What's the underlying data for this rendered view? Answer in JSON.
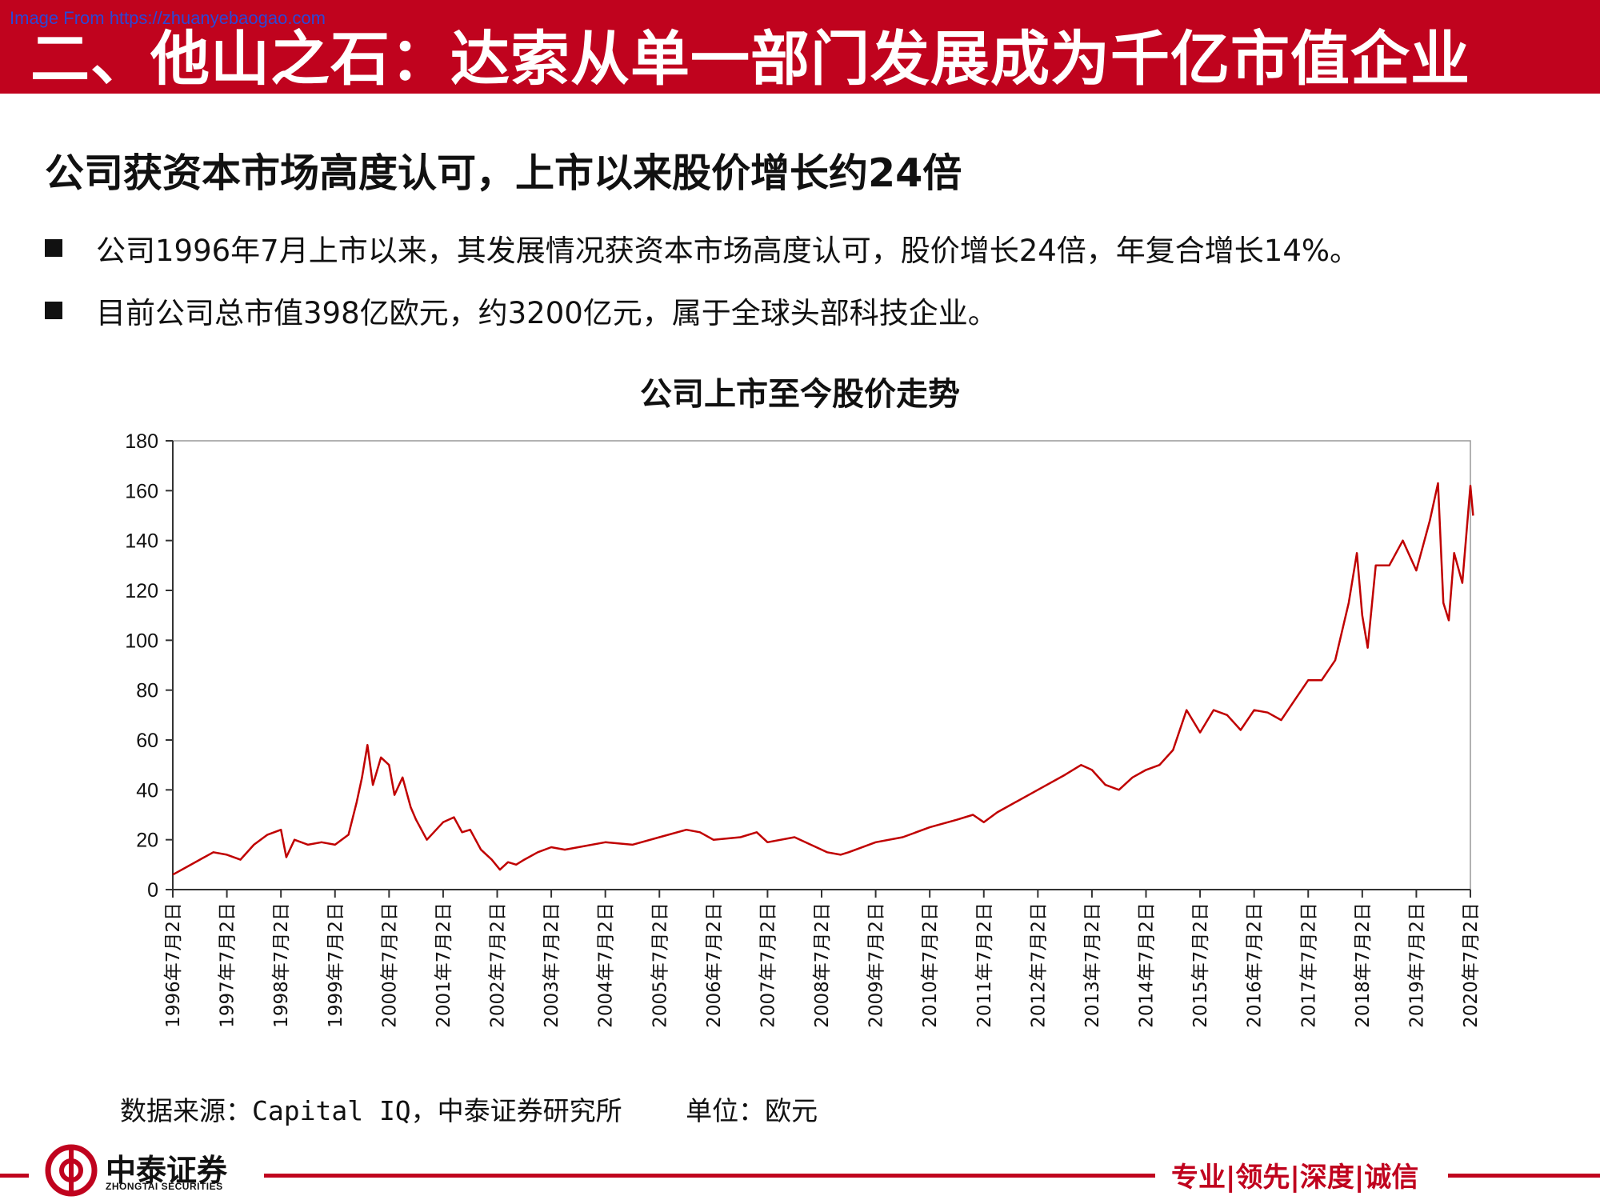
{
  "watermark": "Image From https://zhuanyebaogao.com",
  "header": {
    "title": "二、他山之石：达索从单一部门发展成为千亿市值企业"
  },
  "subtitle": "公司获资本市场高度认可，上市以来股价增长约24倍",
  "bullets": [
    "公司1996年7月上市以来，其发展情况获资本市场高度认可，股价增长24倍，年复合增长14%。",
    "目前公司总市值398亿欧元，约3200亿元，属于全球头部科技企业。"
  ],
  "chart_data": {
    "type": "line",
    "title": "公司上市至今股价走势",
    "xlabel": "",
    "ylabel": "",
    "ylim": [
      0,
      180
    ],
    "yticks": [
      "0",
      "20",
      "40",
      "60",
      "80",
      "100",
      "120",
      "140",
      "160",
      "180"
    ],
    "x_tick_labels": [
      "1996年7月2日",
      "1997年7月2日",
      "1998年7月2日",
      "1999年7月2日",
      "2000年7月2日",
      "2001年7月2日",
      "2002年7月2日",
      "2003年7月2日",
      "2004年7月2日",
      "2005年7月2日",
      "2006年7月2日",
      "2007年7月2日",
      "2008年7月2日",
      "2009年7月2日",
      "2010年7月2日",
      "2011年7月2日",
      "2012年7月2日",
      "2013年7月2日",
      "2014年7月2日",
      "2015年7月2日",
      "2016年7月2日",
      "2017年7月2日",
      "2018年7月2日",
      "2019年7月2日",
      "2020年7月2日"
    ],
    "grid": false,
    "legend": "none",
    "series_color": "#c00000",
    "series": [
      {
        "x": [
          1996.5,
          1996.75,
          1997.0,
          1997.25,
          1997.5,
          1997.75,
          1998.0,
          1998.25,
          1998.5,
          1998.6,
          1998.75,
          1999.0,
          1999.25,
          1999.5,
          1999.75,
          1999.9,
          2000.0,
          2000.1,
          2000.2,
          2000.35,
          2000.5,
          2000.6,
          2000.75,
          2000.9,
          2001.0,
          2001.2,
          2001.5,
          2001.7,
          2001.85,
          2002.0,
          2002.2,
          2002.4,
          2002.55,
          2002.7,
          2002.85,
          2003.0,
          2003.25,
          2003.5,
          2003.75,
          2004.0,
          2004.5,
          2005.0,
          2005.5,
          2006.0,
          2006.25,
          2006.5,
          2007.0,
          2007.3,
          2007.5,
          2008.0,
          2008.3,
          2008.6,
          2008.85,
          2009.0,
          2009.5,
          2010.0,
          2010.5,
          2011.0,
          2011.3,
          2011.5,
          2011.75,
          2012.0,
          2012.5,
          2013.0,
          2013.3,
          2013.5,
          2013.75,
          2014.0,
          2014.25,
          2014.5,
          2014.75,
          2015.0,
          2015.25,
          2015.5,
          2015.75,
          2016.0,
          2016.25,
          2016.5,
          2016.75,
          2017.0,
          2017.25,
          2017.5,
          2017.75,
          2018.0,
          2018.25,
          2018.4,
          2018.5,
          2018.6,
          2018.75,
          2019.0,
          2019.25,
          2019.5,
          2019.75,
          2019.9,
          2020.0,
          2020.1,
          2020.2,
          2020.35,
          2020.5,
          2020.55
        ],
        "values": [
          6,
          9,
          12,
          15,
          14,
          12,
          18,
          22,
          24,
          13,
          20,
          18,
          19,
          18,
          22,
          35,
          45,
          58,
          42,
          53,
          50,
          38,
          45,
          33,
          28,
          20,
          27,
          29,
          23,
          24,
          16,
          12,
          8,
          11,
          10,
          12,
          15,
          17,
          16,
          17,
          19,
          18,
          21,
          24,
          23,
          20,
          21,
          23,
          19,
          21,
          18,
          15,
          14,
          15,
          19,
          21,
          25,
          28,
          30,
          27,
          31,
          34,
          40,
          46,
          50,
          48,
          42,
          40,
          45,
          48,
          50,
          56,
          72,
          63,
          72,
          70,
          64,
          72,
          71,
          68,
          76,
          84,
          84,
          92,
          115,
          135,
          110,
          97,
          130,
          130,
          140,
          128,
          148,
          163,
          115,
          108,
          135,
          123,
          162,
          150
        ]
      }
    ]
  },
  "source_text": "数据来源：Capital IQ，中泰证券研究所    单位：欧元",
  "footer": {
    "logo_cn": "中泰证券",
    "logo_en": "ZHONGTAI SECURITIES",
    "slogan": "专业|领先|深度|诚信"
  }
}
